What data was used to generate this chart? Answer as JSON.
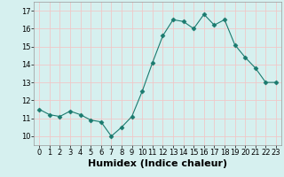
{
  "x": [
    0,
    1,
    2,
    3,
    4,
    5,
    6,
    7,
    8,
    9,
    10,
    11,
    12,
    13,
    14,
    15,
    16,
    17,
    18,
    19,
    20,
    21,
    22,
    23
  ],
  "y": [
    11.5,
    11.2,
    11.1,
    11.4,
    11.2,
    10.9,
    10.8,
    10.0,
    10.5,
    11.1,
    12.5,
    14.1,
    15.6,
    16.5,
    16.4,
    16.0,
    16.8,
    16.2,
    16.5,
    15.1,
    14.4,
    13.8,
    13.0,
    13.0
  ],
  "xlabel": "Humidex (Indice chaleur)",
  "ylim": [
    9.5,
    17.5
  ],
  "xlim": [
    -0.5,
    23.5
  ],
  "yticks": [
    10,
    11,
    12,
    13,
    14,
    15,
    16,
    17
  ],
  "xticks": [
    0,
    1,
    2,
    3,
    4,
    5,
    6,
    7,
    8,
    9,
    10,
    11,
    12,
    13,
    14,
    15,
    16,
    17,
    18,
    19,
    20,
    21,
    22,
    23
  ],
  "line_color": "#1a7a6e",
  "marker": "D",
  "marker_size": 2.5,
  "bg_color": "#d6f0ef",
  "grid_color": "#f0c8c8",
  "tick_fontsize": 6,
  "xlabel_fontsize": 8
}
